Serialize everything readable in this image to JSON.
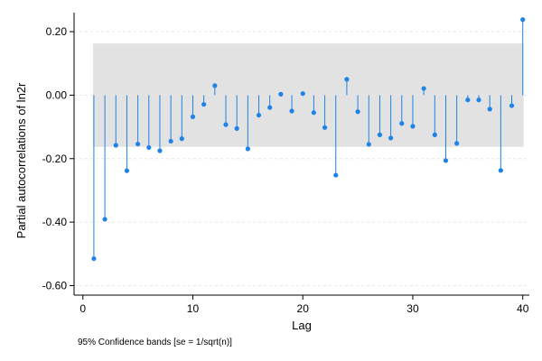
{
  "chart_data": {
    "type": "scatter",
    "subtype": "stem",
    "xlabel": "Lag",
    "ylabel": "Partial autocorrelations of ln2r",
    "note": "95% Confidence bands [se = 1/sqrt(n)]",
    "x_ticks": [
      0,
      10,
      20,
      30,
      40
    ],
    "x_tick_labels": [
      "0",
      "10",
      "20",
      "30",
      "40"
    ],
    "y_ticks": [
      0.2,
      0.0,
      -0.2,
      -0.4,
      -0.6
    ],
    "y_tick_labels": [
      "0.20",
      "0.00",
      "-0.20",
      "-0.40",
      "-0.60"
    ],
    "xlim": [
      -0.8,
      40.6
    ],
    "ylim": [
      -0.63,
      0.26
    ],
    "confidence_band": [
      -0.163,
      0.163
    ],
    "grid": true,
    "series": [
      {
        "x": [
          1,
          2,
          3,
          4,
          5,
          6,
          7,
          8,
          9,
          10,
          11,
          12,
          13,
          14,
          15,
          16,
          17,
          18,
          19,
          20,
          21,
          22,
          23,
          24,
          25,
          26,
          27,
          28,
          29,
          30,
          31,
          32,
          33,
          34,
          35,
          36,
          37,
          38,
          39,
          40
        ],
        "values": [
          -0.515,
          -0.391,
          -0.158,
          -0.238,
          -0.154,
          -0.165,
          -0.175,
          -0.145,
          -0.137,
          -0.068,
          -0.029,
          0.03,
          -0.093,
          -0.105,
          -0.169,
          -0.063,
          -0.039,
          0.003,
          -0.05,
          0.005,
          -0.055,
          -0.102,
          -0.252,
          0.05,
          -0.052,
          -0.155,
          -0.125,
          -0.135,
          -0.089,
          -0.098,
          0.021,
          -0.125,
          -0.206,
          -0.152,
          -0.015,
          -0.015,
          -0.044,
          -0.237,
          -0.033,
          0.238
        ]
      }
    ]
  },
  "colors": {
    "stem": "#1f83e6",
    "band": "#e2e2e2",
    "grid": "#e6e6e6",
    "axis": "#000000"
  }
}
